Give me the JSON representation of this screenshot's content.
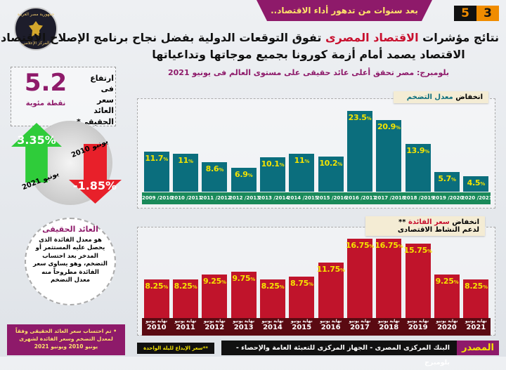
{
  "header": {
    "banner": "بعد سنوات من تدهور أداء الاقتصاد..",
    "numbers": [
      "3",
      "5"
    ],
    "logo": [
      "جمهورية مصر العربية",
      "رئاسة مجلس الوزراء",
      "المركز الإعلامي"
    ],
    "title_pre": "نتائج مؤشرات ",
    "title_highlight": "الاقتصاد المصرى",
    "title_post": " تفوق التوقعات الدولية بفضل نجاح برنامج الإصلاح الاقتصادى",
    "title_line2": "الاقتصاد يصمد أمام أزمة كورونا بجميع موجاتها وتداعياتها",
    "subtitle": "بلومبرج: مصر تحقق أعلى عائد حقيقى على مستوى العالم فى يونيو 2021"
  },
  "kpi": {
    "value": "5.2",
    "unit": "نقطة مئوية",
    "label": "ارتفاع فى سعر العائد الحقيقى*",
    "up_value": "3.35%",
    "up_date": "يونيو 2021",
    "down_value": "-1.85%",
    "down_date": "يونيو 2010"
  },
  "definition": {
    "title": "العائد الحقيقى",
    "body": "هو معدل الفائدة الذى يحصل عليه المستثمر أو المدخر بعد احتساب التضخم، وهو يساوى سعر الفائدة مطروحاً منه معدل التضخم"
  },
  "note": "• تم احتساب سعر العائد الحقيقى وفقاً لمعدل التضخم وسعر الفائدة لشهرى يونيو 2010 ويونيو 2021",
  "footnote": "**سعر الإيداع لليلة الواحدة",
  "source": {
    "label": "المصدر",
    "text": "البنك المركزى المصرى - الجهاز المركزى للتعبئة العامة والإحصاء - بلومبرج"
  },
  "colors": {
    "magenta": "#8e1a6a",
    "teal": "#0b6e7d",
    "green_strip": "#1a8a5a",
    "red_bar": "#c0142b",
    "dark_red_strip": "#5a0a12",
    "label_yellow": "#f5e400"
  },
  "chart_data": [
    {
      "type": "bar",
      "title_pre": "انخفاض ",
      "title_highlight": "معدل التضخم",
      "categories": [
        "2009 /2010",
        "2010 /2011",
        "2011 /2012",
        "2012 /2013",
        "2013 /2014",
        "2014 /2015",
        "2015 /2016",
        "2016 /2017",
        "2017 /2018",
        "2018 /2019",
        "2019 /2020",
        "2020 /2021"
      ],
      "values": [
        11.7,
        11,
        8.6,
        6.9,
        10.1,
        11,
        10.2,
        23.5,
        20.9,
        13.9,
        5.7,
        4.5
      ],
      "labels": [
        "11.7%",
        "11%",
        "8.6%",
        "6.9%",
        "10.1%",
        "11%",
        "10.2%",
        "23.5%",
        "20.9%",
        "13.9%",
        "5.7%",
        "4.5%"
      ],
      "ylim": [
        0,
        25
      ]
    },
    {
      "type": "bar",
      "title_pre": "انخفاض ",
      "title_highlight": "سعر الفائدة",
      "title_post": " **",
      "title_line2": "لدعم النشاط الاقتصادى",
      "category_prefix": "نهاية يونيو",
      "categories": [
        "2010",
        "2011",
        "2012",
        "2013",
        "2014",
        "2015",
        "2016",
        "2017",
        "2018",
        "2019",
        "2020",
        "2021"
      ],
      "values": [
        8.25,
        8.25,
        9.25,
        9.75,
        8.25,
        8.75,
        11.75,
        16.75,
        16.75,
        15.75,
        9.25,
        8.25
      ],
      "labels": [
        "8.25%",
        "8.25%",
        "9.25%",
        "9.75%",
        "8.25%",
        "8.75%",
        "11.75%",
        "16.75%",
        "16.75%",
        "15.75%",
        "9.25%",
        "8.25%"
      ],
      "ylim": [
        0,
        18
      ]
    }
  ]
}
